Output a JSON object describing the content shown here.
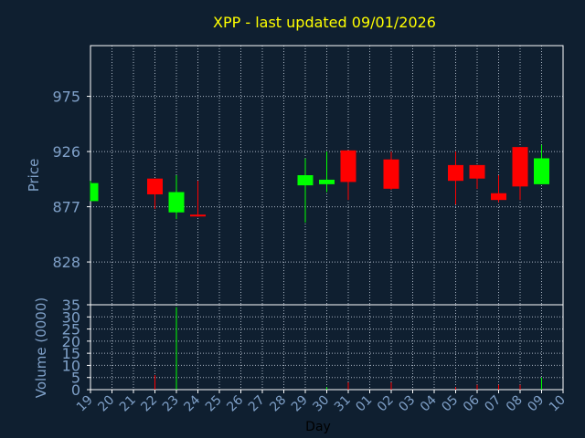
{
  "chart_data": {
    "type": "candlestick",
    "title": "XPP - last updated 09/01/2026",
    "xlabel": "Day",
    "ylabel": "Price",
    "volume_label": "Volume (0000)",
    "grid": true,
    "x_ticks": [
      "19",
      "20",
      "21",
      "22",
      "23",
      "24",
      "25",
      "26",
      "27",
      "28",
      "29",
      "30",
      "31",
      "01",
      "02",
      "03",
      "04",
      "05",
      "06",
      "07",
      "08",
      "09",
      "10"
    ],
    "price_ticks": [
      828,
      877,
      926,
      975
    ],
    "price_range": [
      790,
      1020
    ],
    "volume_ticks": [
      0,
      5,
      10,
      15,
      20,
      25,
      30,
      35
    ],
    "volume_range": [
      0,
      35
    ],
    "colors": {
      "up": "#00ff00",
      "down": "#ff0000",
      "title": "#ffff00",
      "axis": "#7fa0c8",
      "background": "#0f1f30"
    },
    "candles": [
      {
        "day": "19",
        "open": 882,
        "high": 900,
        "low": 882,
        "close": 898,
        "volume": 0
      },
      {
        "day": "22",
        "open": 902,
        "high": 902,
        "low": 875,
        "close": 888,
        "volume": 6
      },
      {
        "day": "23",
        "open": 872,
        "high": 905,
        "low": 866,
        "close": 890,
        "volume": 34
      },
      {
        "day": "24",
        "open": 870,
        "high": 900,
        "low": 868,
        "close": 869,
        "volume": 0
      },
      {
        "day": "29",
        "open": 896,
        "high": 920,
        "low": 863,
        "close": 905,
        "volume": 0
      },
      {
        "day": "30",
        "open": 897,
        "high": 926,
        "low": 890,
        "close": 901,
        "volume": 1
      },
      {
        "day": "31",
        "open": 927,
        "high": 927,
        "low": 883,
        "close": 899,
        "volume": 3
      },
      {
        "day": "02",
        "open": 919,
        "high": 926,
        "low": 892,
        "close": 893,
        "volume": 3
      },
      {
        "day": "05",
        "open": 914,
        "high": 926,
        "low": 879,
        "close": 900,
        "volume": 1
      },
      {
        "day": "06",
        "open": 914,
        "high": 914,
        "low": 893,
        "close": 902,
        "volume": 2
      },
      {
        "day": "07",
        "open": 889,
        "high": 905,
        "low": 881,
        "close": 883,
        "volume": 2
      },
      {
        "day": "08",
        "open": 930,
        "high": 930,
        "low": 883,
        "close": 895,
        "volume": 2
      },
      {
        "day": "09",
        "open": 897,
        "high": 932,
        "low": 897,
        "close": 920,
        "volume": 5
      }
    ]
  }
}
